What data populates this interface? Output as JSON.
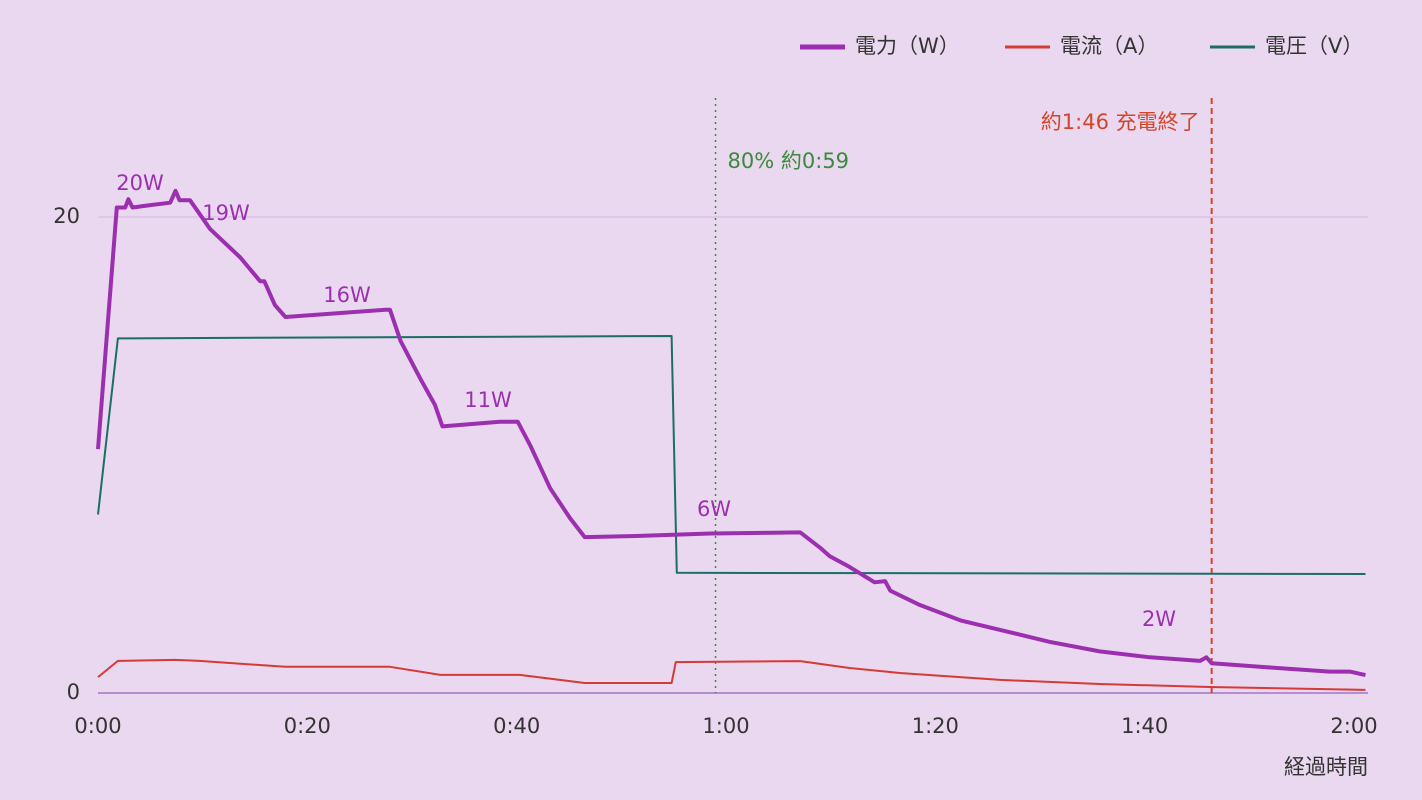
{
  "chart_data": {
    "type": "line",
    "x_label": "経過時間",
    "xlim": [
      0,
      120
    ],
    "xticks": [
      {
        "value": 0,
        "label": "0:00"
      },
      {
        "value": 20,
        "label": "0:20"
      },
      {
        "value": 40,
        "label": "0:40"
      },
      {
        "value": 60,
        "label": "1:00"
      },
      {
        "value": 80,
        "label": "1:20"
      },
      {
        "value": 100,
        "label": "1:40"
      },
      {
        "value": 120,
        "label": "2:00"
      }
    ],
    "ylim": [
      0,
      25
    ],
    "yticks": [
      0,
      20
    ],
    "grid": true,
    "legend": "top-right",
    "series": [
      {
        "name": "電力（W）",
        "color": "#9c2fb0",
        "x": [
          0,
          1.8,
          2.6,
          2.9,
          3.3,
          5.0,
          6.9,
          7.4,
          7.8,
          8.8,
          10.7,
          13.6,
          15.5,
          15.9,
          16.9,
          17.9,
          27.4,
          27.9,
          28.9,
          30.8,
          32.2,
          32.9,
          38.4,
          40.1,
          41.3,
          43.2,
          45.1,
          46.5,
          51.8,
          58.5,
          67.1,
          69.0,
          69.9,
          71.8,
          74.2,
          75.2,
          75.7,
          78.5,
          82.4,
          86.2,
          90.9,
          95.7,
          100.5,
          105.3,
          105.9,
          106.4,
          111.0,
          117.7,
          119.6,
          121.1
        ],
        "values": [
          10.25,
          20.4,
          20.4,
          20.75,
          20.4,
          20.5,
          20.6,
          21.1,
          20.7,
          20.7,
          19.5,
          18.3,
          17.3,
          17.3,
          16.3,
          15.8,
          16.1,
          16.1,
          14.8,
          13.2,
          12.1,
          11.2,
          11.4,
          11.4,
          10.4,
          8.6,
          7.35,
          6.55,
          6.6,
          6.7,
          6.75,
          6.1,
          5.75,
          5.3,
          4.65,
          4.7,
          4.3,
          3.7,
          3.05,
          2.65,
          2.15,
          1.75,
          1.5,
          1.35,
          1.5,
          1.25,
          1.1,
          0.9,
          0.9,
          0.75
        ]
      },
      {
        "name": "電流（A）",
        "color": "#d63a36",
        "x": [
          0,
          1.9,
          7.4,
          9.7,
          17.9,
          27.9,
          32.7,
          40.3,
          46.5,
          54.8,
          55.2,
          67.1,
          71.8,
          76.6,
          86.2,
          95.7,
          106.2,
          121.1
        ],
        "values": [
          0.67,
          1.35,
          1.39,
          1.35,
          1.1,
          1.1,
          0.76,
          0.76,
          0.42,
          0.42,
          1.3,
          1.34,
          1.05,
          0.84,
          0.55,
          0.38,
          0.25,
          0.13
        ]
      },
      {
        "name": "電圧（V）",
        "color": "#1a6e66",
        "x": [
          0,
          1.9,
          54.8,
          55.3,
          121.1
        ],
        "values": [
          7.5,
          14.9,
          15.0,
          5.05,
          5.0
        ]
      }
    ],
    "point_labels": [
      "20W",
      "19W",
      "16W",
      "11W",
      "6W",
      "2W"
    ],
    "vlines": [
      {
        "x": 59,
        "label": "80% 約0:59",
        "color": "#3a8a3a"
      },
      {
        "x": 106.4,
        "label": "約1:46 充電終了",
        "color": "#d2452a"
      }
    ]
  }
}
